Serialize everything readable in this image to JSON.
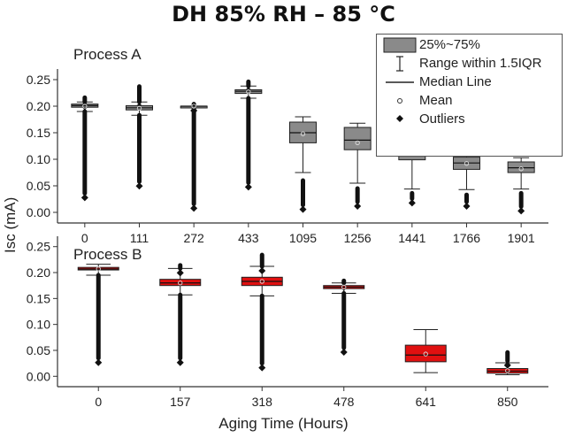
{
  "title": "DH 85% RH – 85 °C",
  "ylabel": "Isc (mA)",
  "xlabel": "Aging Time (Hours)",
  "legend": {
    "box": "25%~75%",
    "range": "Range within 1.5IQR",
    "median": "Median Line",
    "mean": "Mean",
    "outliers": "Outliers"
  },
  "colors": {
    "processA": "#8a8a8a",
    "processB": "#e01010"
  },
  "chart_data": [
    {
      "type": "box",
      "label": "Process A",
      "ylim": [
        -0.02,
        0.27
      ],
      "yticks": [
        "0.00",
        "0.05",
        "0.10",
        "0.15",
        "0.20",
        "0.25"
      ],
      "categories": [
        "0",
        "111",
        "272",
        "433",
        "1095",
        "1256",
        "1441",
        "1766",
        "1901"
      ],
      "boxes": [
        {
          "q1": 0.198,
          "med": 0.201,
          "q3": 0.204,
          "wlo": 0.19,
          "whi": 0.208,
          "mean": 0.2,
          "out_lo": [
            0.036,
            0.19
          ],
          "out_hi": [
            0.208,
            0.216
          ]
        },
        {
          "q1": 0.193,
          "med": 0.197,
          "q3": 0.201,
          "wlo": 0.183,
          "whi": 0.208,
          "mean": 0.196,
          "out_lo": [
            0.058,
            0.183
          ],
          "out_hi": [
            0.208,
            0.237
          ]
        },
        {
          "q1": 0.199,
          "med": 0.2,
          "q3": 0.2,
          "wlo": 0.199,
          "whi": 0.2,
          "mean": 0.2,
          "out_lo": [
            0.016,
            0.199
          ],
          "out_hi": [
            0.2,
            0.204
          ]
        },
        {
          "q1": 0.224,
          "med": 0.228,
          "q3": 0.231,
          "wlo": 0.215,
          "whi": 0.238,
          "mean": 0.227,
          "out_lo": [
            0.056,
            0.215
          ],
          "out_hi": [
            0.238,
            0.246
          ]
        },
        {
          "q1": 0.131,
          "med": 0.15,
          "q3": 0.17,
          "wlo": 0.075,
          "whi": 0.18,
          "mean": 0.148,
          "out_lo": [
            0.014,
            0.06
          ],
          "out_hi": []
        },
        {
          "q1": 0.118,
          "med": 0.136,
          "q3": 0.16,
          "wlo": 0.055,
          "whi": 0.168,
          "mean": 0.131,
          "out_lo": [
            0.02,
            0.045
          ],
          "out_hi": []
        },
        {
          "q1": 0.099,
          "med": 0.113,
          "q3": 0.136,
          "wlo": 0.044,
          "whi": 0.148,
          "mean": 0.115,
          "out_lo": [
            0.026,
            0.036
          ],
          "out_hi": []
        },
        {
          "q1": 0.081,
          "med": 0.093,
          "q3": 0.104,
          "wlo": 0.043,
          "whi": 0.115,
          "mean": 0.092,
          "out_lo": [
            0.02,
            0.033
          ],
          "out_hi": []
        },
        {
          "q1": 0.075,
          "med": 0.084,
          "q3": 0.095,
          "wlo": 0.044,
          "whi": 0.103,
          "mean": 0.082,
          "out_lo": [
            0.011,
            0.036
          ],
          "out_hi": []
        }
      ]
    },
    {
      "type": "box",
      "label": "Process B",
      "ylim": [
        -0.02,
        0.27
      ],
      "yticks": [
        "0.00",
        "0.05",
        "0.10",
        "0.15",
        "0.20",
        "0.25"
      ],
      "categories": [
        "0",
        "157",
        "318",
        "478",
        "641",
        "850"
      ],
      "boxes": [
        {
          "q1": 0.205,
          "med": 0.207,
          "q3": 0.21,
          "wlo": 0.195,
          "whi": 0.216,
          "mean": 0.207,
          "out_lo": [
            0.035,
            0.195
          ],
          "out_hi": []
        },
        {
          "q1": 0.175,
          "med": 0.18,
          "q3": 0.187,
          "wlo": 0.157,
          "whi": 0.208,
          "mean": 0.18,
          "out_lo": [
            0.035,
            0.157
          ],
          "out_hi": [
            0.208,
            0.214
          ]
        },
        {
          "q1": 0.175,
          "med": 0.183,
          "q3": 0.191,
          "wlo": 0.155,
          "whi": 0.212,
          "mean": 0.183,
          "out_lo": [
            0.025,
            0.155
          ],
          "out_hi": [
            0.212,
            0.234
          ]
        },
        {
          "q1": 0.169,
          "med": 0.172,
          "q3": 0.175,
          "wlo": 0.16,
          "whi": 0.18,
          "mean": 0.172,
          "out_lo": [
            0.055,
            0.16
          ],
          "out_hi": [
            0.18,
            0.184
          ]
        },
        {
          "q1": 0.028,
          "med": 0.041,
          "q3": 0.06,
          "wlo": 0.007,
          "whi": 0.09,
          "mean": 0.043,
          "out_lo": [],
          "out_hi": []
        },
        {
          "q1": 0.006,
          "med": 0.01,
          "q3": 0.015,
          "wlo": 0.003,
          "whi": 0.026,
          "mean": 0.011,
          "out_lo": [],
          "out_hi": [
            0.03,
            0.046
          ]
        }
      ]
    }
  ]
}
